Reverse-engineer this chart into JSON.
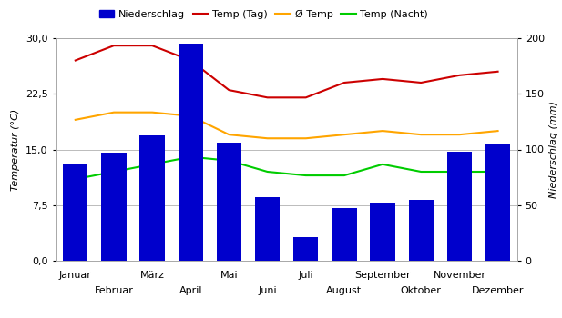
{
  "months": [
    "Januar",
    "Februar",
    "März",
    "April",
    "Mai",
    "Juni",
    "Juli",
    "August",
    "September",
    "Oktober",
    "November",
    "Dezember"
  ],
  "niederschlag": [
    87,
    97,
    113,
    195,
    106,
    57,
    21,
    47,
    52,
    55,
    98,
    105
  ],
  "temp_tag": [
    27.0,
    29.0,
    29.0,
    27.0,
    23.0,
    22.0,
    22.0,
    24.0,
    24.5,
    24.0,
    25.0,
    25.5
  ],
  "temp_avg": [
    19.0,
    20.0,
    20.0,
    19.5,
    17.0,
    16.5,
    16.5,
    17.0,
    17.5,
    17.0,
    17.0,
    17.5
  ],
  "temp_nacht": [
    11.0,
    12.0,
    13.0,
    14.0,
    13.5,
    12.0,
    11.5,
    11.5,
    13.0,
    12.0,
    12.0,
    12.0
  ],
  "bar_color": "#0000cc",
  "line_tag_color": "#cc0000",
  "line_avg_color": "#ffa500",
  "line_nacht_color": "#00cc00",
  "ylabel_left": "Temperatur (°C)",
  "ylabel_right": "Niederschlag (mm)",
  "ylim_left": [
    0,
    30
  ],
  "ylim_right": [
    0,
    200
  ],
  "yticks_left": [
    0.0,
    7.5,
    15.0,
    22.5,
    30.0
  ],
  "yticks_right": [
    0,
    50,
    100,
    150,
    200
  ],
  "ytick_labels_left": [
    "0,0",
    "7,5",
    "15,0",
    "22,5",
    "30,0"
  ],
  "ytick_labels_right": [
    "0",
    "50",
    "100",
    "150",
    "200"
  ],
  "legend_labels": [
    "Niederschlag",
    "Temp (Tag)",
    "Ø Temp",
    "Temp (Nacht)"
  ],
  "background_color": "#ffffff",
  "grid_color": "#bbbbbb"
}
